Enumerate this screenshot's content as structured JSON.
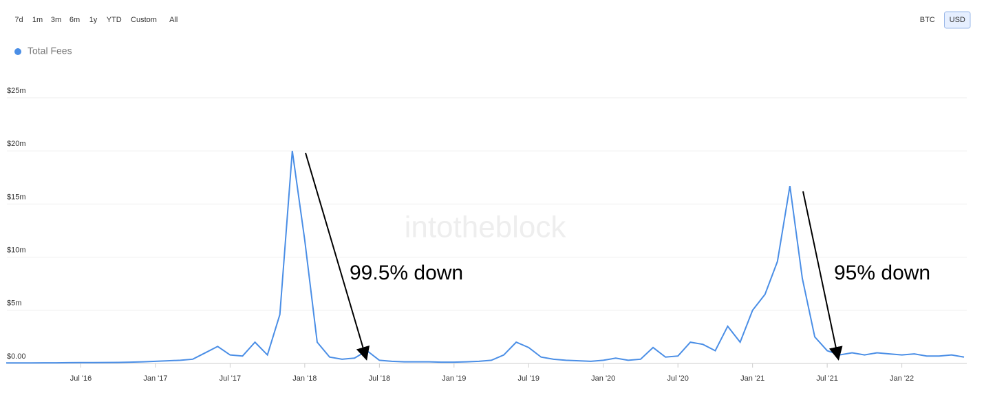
{
  "ui": {
    "ranges": [
      "7d",
      "1m",
      "3m",
      "6m",
      "1y",
      "YTD",
      "Custom",
      "All"
    ],
    "currencies": [
      "BTC",
      "USD"
    ],
    "active_currency": "USD"
  },
  "chart_data": {
    "type": "line",
    "watermark": "intotheblock",
    "x": [
      "2016-01",
      "2016-02",
      "2016-03",
      "2016-04",
      "2016-05",
      "2016-06",
      "2016-07",
      "2016-08",
      "2016-09",
      "2016-10",
      "2016-11",
      "2016-12",
      "2017-01",
      "2017-02",
      "2017-03",
      "2017-04",
      "2017-05",
      "2017-06",
      "2017-07",
      "2017-08",
      "2017-09",
      "2017-10",
      "2017-11",
      "2017-12",
      "2018-01",
      "2018-02",
      "2018-03",
      "2018-04",
      "2018-05",
      "2018-06",
      "2018-07",
      "2018-08",
      "2018-09",
      "2018-10",
      "2018-11",
      "2018-12",
      "2019-01",
      "2019-02",
      "2019-03",
      "2019-04",
      "2019-05",
      "2019-06",
      "2019-07",
      "2019-08",
      "2019-09",
      "2019-10",
      "2019-11",
      "2019-12",
      "2020-01",
      "2020-02",
      "2020-03",
      "2020-04",
      "2020-05",
      "2020-06",
      "2020-07",
      "2020-08",
      "2020-09",
      "2020-10",
      "2020-11",
      "2020-12",
      "2021-01",
      "2021-02",
      "2021-03",
      "2021-04",
      "2021-05",
      "2021-06",
      "2021-07",
      "2021-08",
      "2021-09",
      "2021-10",
      "2021-11",
      "2021-12",
      "2022-01",
      "2022-02",
      "2022-03",
      "2022-04",
      "2022-05",
      "2022-06"
    ],
    "series": [
      {
        "name": "Total Fees",
        "color": "#4a8ee6",
        "values": [
          0.05,
          0.05,
          0.05,
          0.06,
          0.06,
          0.07,
          0.08,
          0.08,
          0.09,
          0.1,
          0.12,
          0.15,
          0.2,
          0.25,
          0.3,
          0.4,
          1.0,
          1.6,
          0.8,
          0.7,
          2.0,
          0.8,
          4.6,
          20.0,
          11.6,
          2.0,
          0.6,
          0.4,
          0.5,
          1.2,
          0.3,
          0.2,
          0.15,
          0.15,
          0.15,
          0.12,
          0.12,
          0.15,
          0.2,
          0.3,
          0.8,
          2.0,
          1.5,
          0.6,
          0.4,
          0.3,
          0.25,
          0.2,
          0.3,
          0.5,
          0.3,
          0.4,
          1.5,
          0.6,
          0.7,
          2.0,
          1.8,
          1.2,
          3.5,
          2.0,
          5.0,
          6.5,
          9.6,
          16.7,
          8.0,
          2.5,
          1.2,
          0.8,
          1.0,
          0.8,
          1.0,
          0.9,
          0.8,
          0.9,
          0.7,
          0.7,
          0.8,
          0.6
        ]
      }
    ],
    "xlim": [
      "2016-01",
      "2022-06"
    ],
    "xticks": [
      {
        "value": "2016-07",
        "label": "Jul '16"
      },
      {
        "value": "2017-01",
        "label": "Jan '17"
      },
      {
        "value": "2017-07",
        "label": "Jul '17"
      },
      {
        "value": "2018-01",
        "label": "Jan '18"
      },
      {
        "value": "2018-07",
        "label": "Jul '18"
      },
      {
        "value": "2019-01",
        "label": "Jan '19"
      },
      {
        "value": "2019-07",
        "label": "Jul '19"
      },
      {
        "value": "2020-01",
        "label": "Jan '20"
      },
      {
        "value": "2020-07",
        "label": "Jul '20"
      },
      {
        "value": "2021-01",
        "label": "Jan '21"
      },
      {
        "value": "2021-07",
        "label": "Jul '21"
      },
      {
        "value": "2022-01",
        "label": "Jan '22"
      }
    ],
    "ylim": [
      0,
      25
    ],
    "yticks": [
      {
        "value": 0,
        "label": "$0.00"
      },
      {
        "value": 5,
        "label": "$5m"
      },
      {
        "value": 10,
        "label": "$10m"
      },
      {
        "value": 15,
        "label": "$15m"
      },
      {
        "value": 20,
        "label": "$20m"
      },
      {
        "value": 25,
        "label": "$25m"
      }
    ],
    "grid": true,
    "annotations": [
      {
        "text": "99.5% down"
      },
      {
        "text": "95% down"
      }
    ]
  }
}
